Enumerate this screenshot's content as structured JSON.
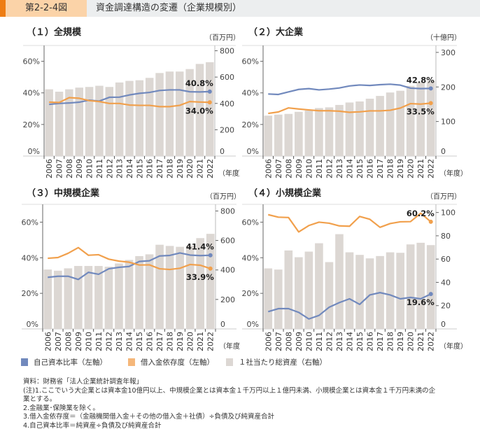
{
  "header": {
    "figure_number": "第2-2-4図",
    "title": "資金調達構造の変遷（企業規模別）"
  },
  "colors": {
    "equity_ratio": "#7189bd",
    "debt_dependence": "#f1a04c",
    "assets": "#dcd7d3",
    "accent": "#ee7d14"
  },
  "legend": [
    {
      "label": "自己資本比率（左軸）",
      "color": "#7189bd"
    },
    {
      "label": "借入金依存度（左軸）",
      "color": "#f1a04c"
    },
    {
      "label": "１社当たり総資産（右軸）",
      "color": "#dcd7d3"
    }
  ],
  "notes": [
    "資料：財務省「法人企業統計調査年報」",
    "(注)1.ここでいう大企業とは資本金10億円以上、中規模企業とは資本金１千万円以上１億円未満、小規模企業とは資本金１千万円未満の企",
    "業とする。",
    "2.金融業･保険業を除く。",
    "3.借入金依存度＝（金融機関借入金＋その他の借入金＋社債）÷負債及び純資産合計",
    "4.自己資本比率＝純資産÷負債及び純資産合計"
  ],
  "chart_data": [
    {
      "type": "bar+line",
      "title": "（１）全規模",
      "right_unit": "（百万円）",
      "x_unit": "（年度）",
      "categories": [
        "2006",
        "2007",
        "2008",
        "2009",
        "2010",
        "2011",
        "2012",
        "2013",
        "2014",
        "2015",
        "2016",
        "2017",
        "2018",
        "2019",
        "2020",
        "2021",
        "2022"
      ],
      "left_ylim": [
        0,
        70
      ],
      "left_ticks": [
        "0%",
        "20%",
        "40%",
        "60%"
      ],
      "left_tick_values": [
        0,
        20,
        40,
        60
      ],
      "right_ylim": [
        0,
        840
      ],
      "right_ticks": [
        "0",
        "200",
        "400",
        "600",
        "800"
      ],
      "right_tick_values": [
        0,
        200,
        400,
        600,
        800
      ],
      "series": [
        {
          "name": "１社当たり総資産（右軸）",
          "axis": "right",
          "kind": "bar",
          "values": [
            507,
            489,
            507,
            520,
            525,
            534,
            525,
            559,
            571,
            576,
            594,
            631,
            642,
            642,
            661,
            700,
            713
          ]
        },
        {
          "name": "自己資本比率（左軸）",
          "axis": "left",
          "kind": "line",
          "values": [
            32.7,
            33.3,
            33.6,
            34.1,
            35.4,
            34.8,
            37.2,
            37.3,
            38.7,
            39.7,
            40.3,
            41.5,
            41.9,
            41.9,
            40.7,
            40.6,
            40.8
          ],
          "end_label": "40.8%"
        },
        {
          "name": "借入金依存度（左軸）",
          "axis": "left",
          "kind": "line",
          "values": [
            34.1,
            33.9,
            37.0,
            36.6,
            35.1,
            34.5,
            33.3,
            33.3,
            32.3,
            32.1,
            32.1,
            31.3,
            31.3,
            32.1,
            34.5,
            34.2,
            34.0
          ],
          "end_label": "34.0%"
        }
      ]
    },
    {
      "type": "bar+line",
      "title": "（２）大企業",
      "right_unit": "（十億円）",
      "x_unit": "（年度）",
      "categories": [
        "2006",
        "2007",
        "2008",
        "2009",
        "2010",
        "2011",
        "2012",
        "2013",
        "2014",
        "2015",
        "2016",
        "2017",
        "2018",
        "2019",
        "2020",
        "2021",
        "2022"
      ],
      "left_ylim": [
        0,
        70
      ],
      "left_ticks": [
        "0%",
        "20%",
        "40%",
        "60%"
      ],
      "left_tick_values": [
        0,
        20,
        40,
        60
      ],
      "right_ylim": [
        0,
        320
      ],
      "right_ticks": [
        "0",
        "100",
        "200",
        "300"
      ],
      "right_tick_values": [
        0,
        100,
        200,
        300
      ],
      "series": [
        {
          "name": "１社当たり総資産（右軸）",
          "axis": "right",
          "kind": "bar",
          "values": [
            117,
            120,
            122,
            128,
            132,
            139,
            141,
            148,
            155,
            158,
            166,
            174,
            184,
            189,
            203,
            214,
            217
          ]
        },
        {
          "name": "自己資本比率（左軸）",
          "axis": "left",
          "kind": "line",
          "values": [
            39.3,
            39.0,
            40.6,
            42.2,
            42.7,
            41.9,
            42.4,
            43.1,
            44.4,
            45.0,
            44.7,
            45.2,
            45.5,
            44.9,
            43.0,
            42.7,
            42.8
          ],
          "end_label": "42.8%"
        },
        {
          "name": "借入金依存度（左軸）",
          "axis": "left",
          "kind": "line",
          "values": [
            27.0,
            27.9,
            30.5,
            29.8,
            29.2,
            28.7,
            28.7,
            28.4,
            27.7,
            28.0,
            28.6,
            28.6,
            29.0,
            30.4,
            33.2,
            32.9,
            33.5
          ],
          "end_label": "33.5%"
        }
      ]
    },
    {
      "type": "bar+line",
      "title": "（３）中規模企業",
      "right_unit": "（百万円）",
      "x_unit": "（年度）",
      "categories": [
        "2006",
        "2007",
        "2008",
        "2009",
        "2010",
        "2011",
        "2012",
        "2013",
        "2014",
        "2015",
        "2016",
        "2017",
        "2018",
        "2019",
        "2020",
        "2021",
        "2022"
      ],
      "left_ylim": [
        0,
        70
      ],
      "left_ticks": [
        "0%",
        "20%",
        "40%",
        "60%"
      ],
      "left_tick_values": [
        0,
        20,
        40,
        60
      ],
      "right_ylim": [
        0,
        845
      ],
      "right_ticks": [
        "0",
        "200",
        "400",
        "600",
        "800"
      ],
      "right_tick_values": [
        0,
        200,
        400,
        600,
        800
      ],
      "series": [
        {
          "name": "１社当たり総資産（右軸）",
          "axis": "right",
          "kind": "bar",
          "values": [
            403,
            395,
            411,
            427,
            427,
            427,
            422,
            444,
            468,
            494,
            506,
            571,
            563,
            557,
            565,
            616,
            645
          ]
        },
        {
          "name": "自己資本比率（左軸）",
          "axis": "left",
          "kind": "line",
          "values": [
            29.0,
            29.6,
            29.6,
            27.8,
            31.8,
            30.7,
            33.8,
            34.6,
            35.1,
            37.9,
            38.3,
            41.0,
            41.3,
            42.7,
            41.5,
            41.2,
            41.4
          ],
          "end_label": "41.4%"
        },
        {
          "name": "借入金依存度（左軸）",
          "axis": "left",
          "kind": "line",
          "values": [
            39.7,
            40.1,
            42.5,
            45.7,
            41.4,
            41.7,
            39.2,
            38.1,
            37.5,
            35.9,
            36.0,
            33.8,
            33.4,
            34.1,
            36.2,
            35.8,
            33.9
          ],
          "end_label": "33.9%"
        }
      ]
    },
    {
      "type": "bar+line",
      "title": "（４）小規模企業",
      "right_unit": "（百万円）",
      "x_unit": "（年度）",
      "categories": [
        "2006",
        "2007",
        "2008",
        "2009",
        "2010",
        "2011",
        "2012",
        "2013",
        "2014",
        "2015",
        "2016",
        "2017",
        "2018",
        "2019",
        "2020",
        "2021",
        "2022"
      ],
      "left_ylim": [
        0,
        70
      ],
      "left_ticks": [
        "0%",
        "20%",
        "40%",
        "60%"
      ],
      "left_tick_values": [
        0,
        20,
        40,
        60
      ],
      "right_ylim": [
        0,
        107
      ],
      "right_ticks": [
        "0",
        "20",
        "40",
        "60",
        "80",
        "100"
      ],
      "right_tick_values": [
        0,
        20,
        40,
        60,
        80,
        100
      ],
      "series": [
        {
          "name": "１社当たり総資産（右軸）",
          "axis": "right",
          "kind": "bar",
          "values": [
            52,
            51,
            67.4,
            61.6,
            66.4,
            73.6,
            57.4,
            81.4,
            65.8,
            63.6,
            60.6,
            62.6,
            65.8,
            65.4,
            72.6,
            74,
            72
          ]
        },
        {
          "name": "自己資本比率（左軸）",
          "axis": "left",
          "kind": "line",
          "values": [
            9.7,
            11.4,
            11.4,
            9.3,
            5.6,
            7.6,
            12.2,
            14.8,
            16.9,
            13.8,
            19.1,
            20.4,
            19.1,
            16.9,
            17.7,
            16.9,
            19.6
          ],
          "end_label": "19.6%"
        },
        {
          "name": "借入金依存度（左軸）",
          "axis": "left",
          "kind": "line",
          "values": [
            64.2,
            62.8,
            62.6,
            54.5,
            58.1,
            60.0,
            59.4,
            57.9,
            57.7,
            63.2,
            61.6,
            57.1,
            59.2,
            60.2,
            60.3,
            65.0,
            60.2
          ],
          "end_label": "60.2%"
        }
      ]
    }
  ]
}
